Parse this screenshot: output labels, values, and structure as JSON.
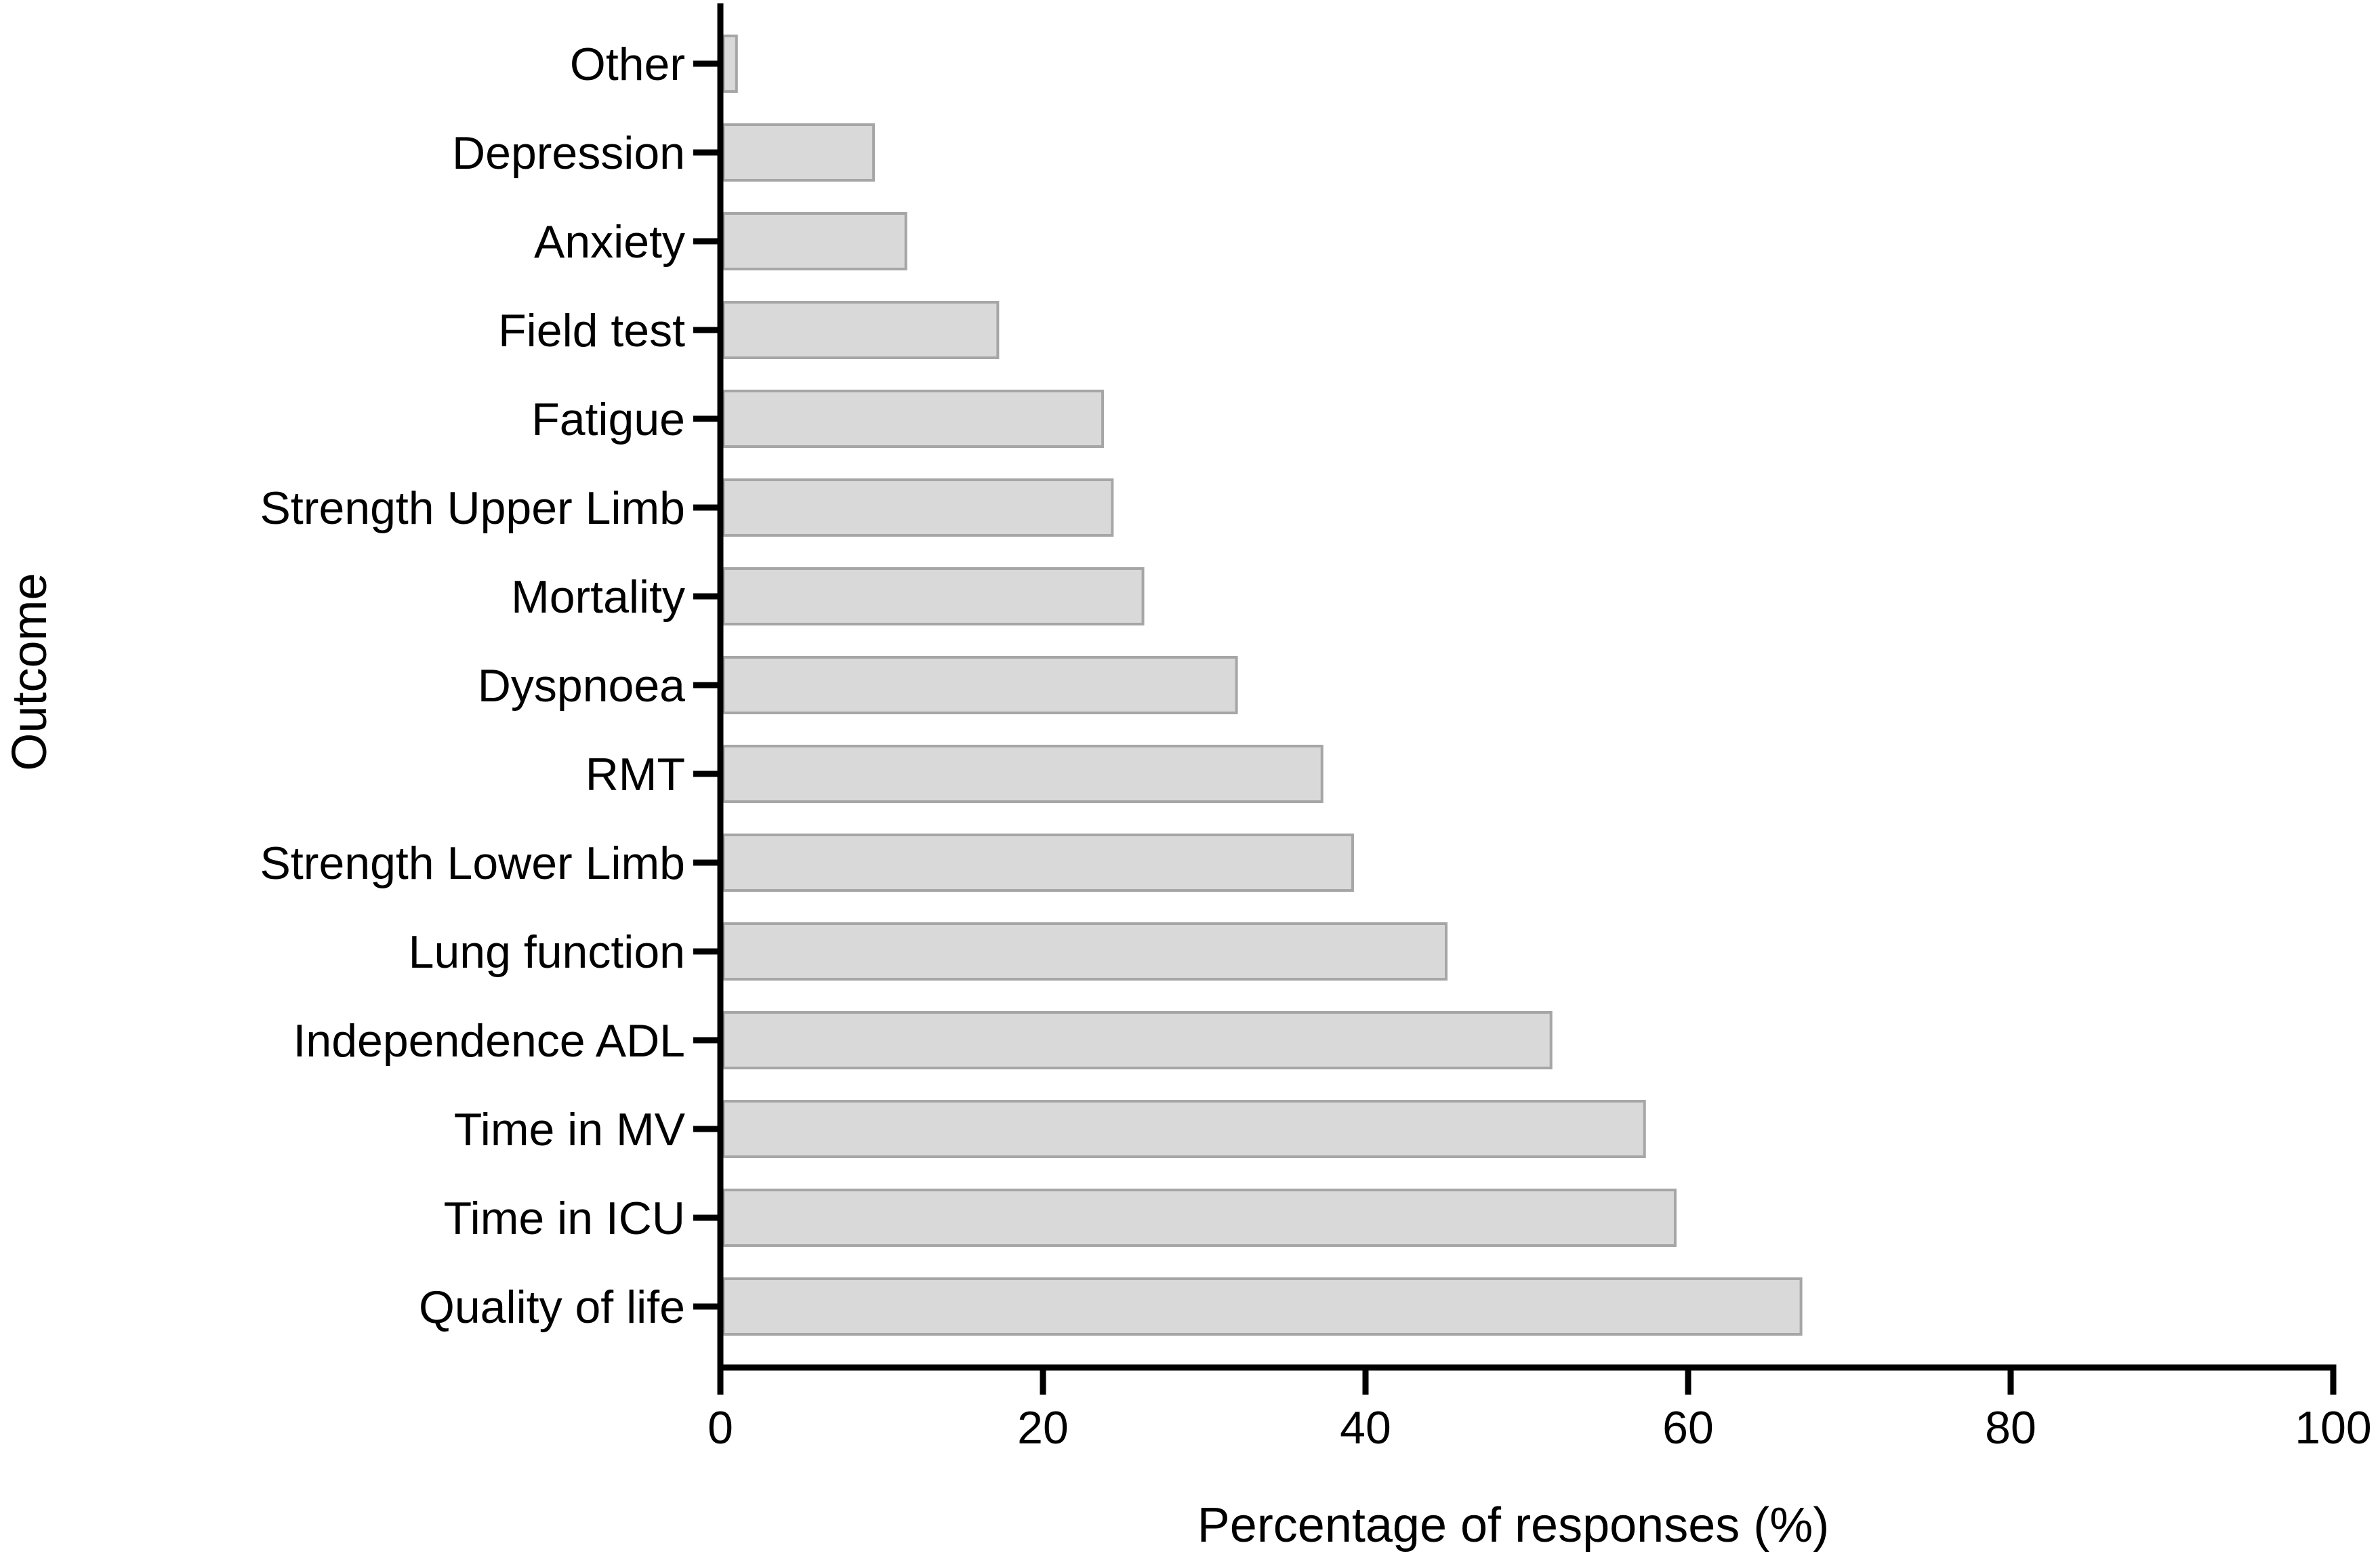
{
  "chart_data": {
    "type": "bar",
    "orientation": "horizontal",
    "categories": [
      "Quality of life",
      "Time in ICU",
      "Time in MV",
      "Independence ADL",
      "Lung function",
      "Strength Lower Limb",
      "RMT",
      "Dyspnoea",
      "Mortality",
      "Strength Upper Limb",
      "Fatigue",
      "Field test",
      "Anxiety",
      "Depression",
      "Other"
    ],
    "values": [
      67.0,
      59.2,
      57.3,
      51.5,
      45.0,
      39.2,
      37.3,
      32.0,
      26.2,
      24.3,
      23.7,
      17.2,
      11.5,
      9.5,
      1.0
    ],
    "title": "",
    "xlabel": "Percentage of responses (%)",
    "ylabel": "Outcome",
    "xlim": [
      0,
      100
    ],
    "xticks": [
      0,
      20,
      40,
      60,
      80,
      100
    ],
    "xtick_labels": [
      "0",
      "20",
      "40",
      "60",
      "80",
      "100"
    ],
    "grid": false,
    "legend": "none",
    "bar_color": "#d9d9d9",
    "bar_edge_color": "#a6a6a6",
    "axis_color": "#000000"
  }
}
